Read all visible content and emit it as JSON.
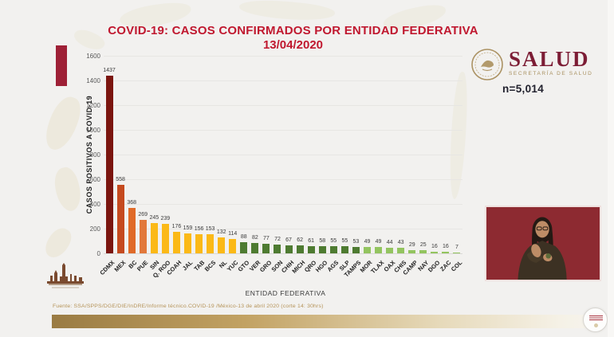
{
  "slide": {
    "title_line1": "COVID-19: CASOS CONFIRMADOS POR ENTIDAD FEDERATIVA",
    "title_line2": "13/04/2020",
    "n_label": "n=5,014",
    "source": "Fuente: SSA/SPPS/DGE/DIE/InDRE/Informe técnico.COVID-19 /México-13 de abril 2020 (corte 14: 30hrs)"
  },
  "logo": {
    "name": "SALUD",
    "subtitle": "SECRETARÍA DE SALUD"
  },
  "chart_data": {
    "type": "bar",
    "title": "COVID-19: CASOS CONFIRMADOS POR ENTIDAD FEDERATIVA 13/04/2020",
    "xlabel": "ENTIDAD FEDERATIVA",
    "ylabel": "CASOS POSITIVOS A COVID-19",
    "ylim": [
      0,
      1600
    ],
    "ytick_step": 200,
    "grid": true,
    "legend": "none",
    "categories": [
      "CDMX",
      "MEX",
      "BC",
      "PUE",
      "SIN",
      "Q. ROO",
      "COAH",
      "JAL",
      "TAB",
      "BCS",
      "NL",
      "YUC",
      "GTO",
      "VER",
      "GRO",
      "SON",
      "CHIH",
      "MICH",
      "QRO",
      "HGO",
      "AGS",
      "SLP",
      "TAMPS",
      "MOR",
      "TLAX",
      "OAX",
      "CHIS",
      "CAMP",
      "NAY",
      "DGO",
      "ZAC",
      "COL"
    ],
    "values": [
      1437,
      558,
      368,
      269,
      245,
      239,
      176,
      159,
      156,
      153,
      132,
      114,
      88,
      82,
      77,
      72,
      67,
      62,
      61,
      58,
      55,
      55,
      53,
      49,
      49,
      44,
      43,
      29,
      25,
      16,
      16,
      7
    ],
    "bar_colors": [
      "#7b150e",
      "#c54a1f",
      "#e06a28",
      "#e2783b",
      "#fbb917",
      "#fbb917",
      "#fbb917",
      "#fbb917",
      "#fbb917",
      "#fbb917",
      "#fbb917",
      "#fbb917",
      "#4e7b31",
      "#4e7b31",
      "#4e7b31",
      "#4e7b31",
      "#4e7b31",
      "#4e7b31",
      "#4e7b31",
      "#4e7b31",
      "#4e7b31",
      "#4e7b31",
      "#4e7b31",
      "#93c45f",
      "#93c45f",
      "#93c45f",
      "#93c45f",
      "#93c45f",
      "#93c45f",
      "#93c45f",
      "#93c45f",
      "#93c45f"
    ],
    "total": 5014
  },
  "colors": {
    "title": "#c0182f",
    "accent_rect": "#9e2036",
    "logo_maroon": "#7c1d35",
    "logo_gold": "#a8905e",
    "interpreter_bg": "#8d2a31",
    "gold_bar": "#9a7b43"
  }
}
